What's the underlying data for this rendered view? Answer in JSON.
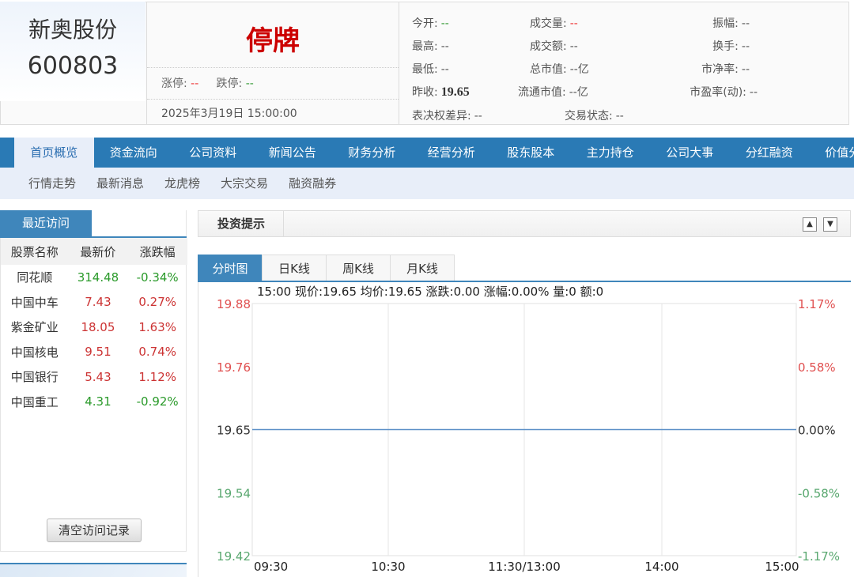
{
  "stock": {
    "name": "新奥股份",
    "code": "600803",
    "status": "停牌",
    "limit_up_label": "涨停:",
    "limit_up": "--",
    "limit_down_label": "跌停:",
    "limit_down": "--",
    "datetime": "2025年3月19日 15:00:00"
  },
  "quote": [
    {
      "label": "今开:",
      "value": "--",
      "color": "grn"
    },
    {
      "label": "成交量:",
      "value": "--",
      "color": "red"
    },
    {
      "label": "振幅:",
      "value": "--"
    },
    {
      "label": "最高:",
      "value": "--"
    },
    {
      "label": "成交额:",
      "value": "--"
    },
    {
      "label": "换手:",
      "value": "--"
    },
    {
      "label": "最低:",
      "value": "--"
    },
    {
      "label": "总市值:",
      "value": "--亿"
    },
    {
      "label": "市净率:",
      "value": "--"
    },
    {
      "label": "昨收:",
      "value": "19.65",
      "bold": true
    },
    {
      "label": "流通市值:",
      "value": "--亿"
    },
    {
      "label": "市盈率(动):",
      "value": "--"
    },
    {
      "label": "表决权差异:",
      "value": "--"
    },
    {
      "label": "交易状态:",
      "value": "--"
    }
  ],
  "nav": [
    "首页概览",
    "资金流向",
    "公司资料",
    "新闻公告",
    "财务分析",
    "经营分析",
    "股东股本",
    "主力持仓",
    "公司大事",
    "分红融资",
    "价值分析"
  ],
  "subnav": [
    "行情走势",
    "最新消息",
    "龙虎榜",
    "大宗交易",
    "融资融券"
  ],
  "recent": {
    "tab": "最近访问",
    "headers": [
      "股票名称",
      "最新价",
      "涨跌幅"
    ],
    "rows": [
      [
        "同花顺",
        "314.48",
        "-0.34%",
        "down"
      ],
      [
        "中国中车",
        "7.43",
        "0.27%",
        "up"
      ],
      [
        "紫金矿业",
        "18.05",
        "1.63%",
        "up"
      ],
      [
        "中国核电",
        "9.51",
        "0.74%",
        "up"
      ],
      [
        "中国银行",
        "5.43",
        "1.12%",
        "up"
      ],
      [
        "中国重工",
        "4.31",
        "-0.92%",
        "down"
      ]
    ],
    "clear_button": "清空访问记录"
  },
  "tips": {
    "title": "投资提示"
  },
  "chart_tabs": [
    "分时图",
    "日K线",
    "周K线",
    "月K线"
  ],
  "chart_data": {
    "type": "line",
    "info": "15:00 现价:19.65 均价:19.65 涨跌:0.00 涨幅:0.00% 量:0 额:0",
    "x_ticks": [
      "09:30",
      "10:30",
      "11:30/13:00",
      "14:00",
      "15:00"
    ],
    "y_ticks": [
      "19.88",
      "19.76",
      "19.65",
      "19.54",
      "19.42"
    ],
    "pct_ticks": [
      "1.17%",
      "0.58%",
      "0.00%",
      "-0.58%",
      "-1.17%"
    ],
    "ylim": [
      19.42,
      19.88
    ],
    "prev_close": 19.65,
    "series": [
      {
        "x": [
          "09:30",
          "15:00"
        ],
        "values": [
          19.65,
          19.65
        ]
      }
    ],
    "colors": {
      "up": "#e05050",
      "down": "#5aa870",
      "line": "#5b8fc7"
    }
  }
}
